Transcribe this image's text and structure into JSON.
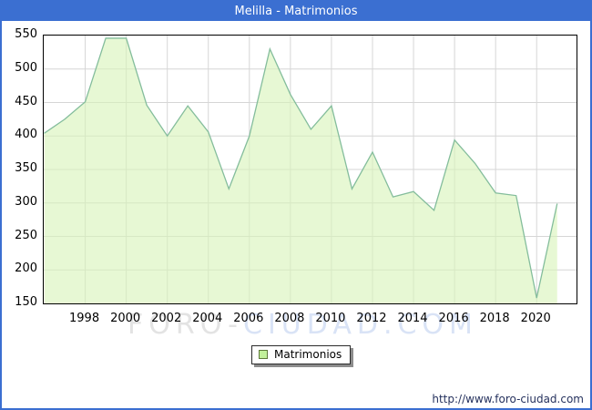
{
  "window": {
    "title": "Melilla - Matrimonios"
  },
  "chart_data": {
    "type": "area",
    "title": "Melilla - Matrimonios",
    "x": [
      1996,
      1997,
      1998,
      1999,
      2000,
      2001,
      2002,
      2003,
      2004,
      2005,
      2006,
      2007,
      2008,
      2009,
      2010,
      2011,
      2012,
      2013,
      2014,
      2015,
      2016,
      2017,
      2018,
      2019,
      2020,
      2021
    ],
    "series": [
      {
        "name": "Matrimonios",
        "values": [
          404,
          425,
          451,
          546,
          546,
          446,
          400,
          445,
          406,
          321,
          400,
          530,
          462,
          410,
          445,
          321,
          376,
          309,
          317,
          289,
          394,
          359,
          315,
          311,
          158,
          299
        ]
      }
    ],
    "ylim": [
      150,
      550
    ],
    "ytick_step": 50,
    "yticks": [
      150,
      200,
      250,
      300,
      350,
      400,
      450,
      500,
      550
    ],
    "xticks": [
      1998,
      2000,
      2002,
      2004,
      2006,
      2008,
      2010,
      2012,
      2014,
      2016,
      2018,
      2020
    ],
    "grid": true,
    "legend_position": "bottom-center",
    "colors": {
      "area_fill": "#d9f4ba",
      "line": "#84bd9c",
      "gridline": "#d6d6d6",
      "frame": "#3b6fd1"
    }
  },
  "legend": {
    "label": "Matrimonios"
  },
  "watermark": {
    "part1": "FORO-",
    "part2": "CIUDAD.COM"
  },
  "footer": {
    "url": "http://www.foro-ciudad.com"
  }
}
